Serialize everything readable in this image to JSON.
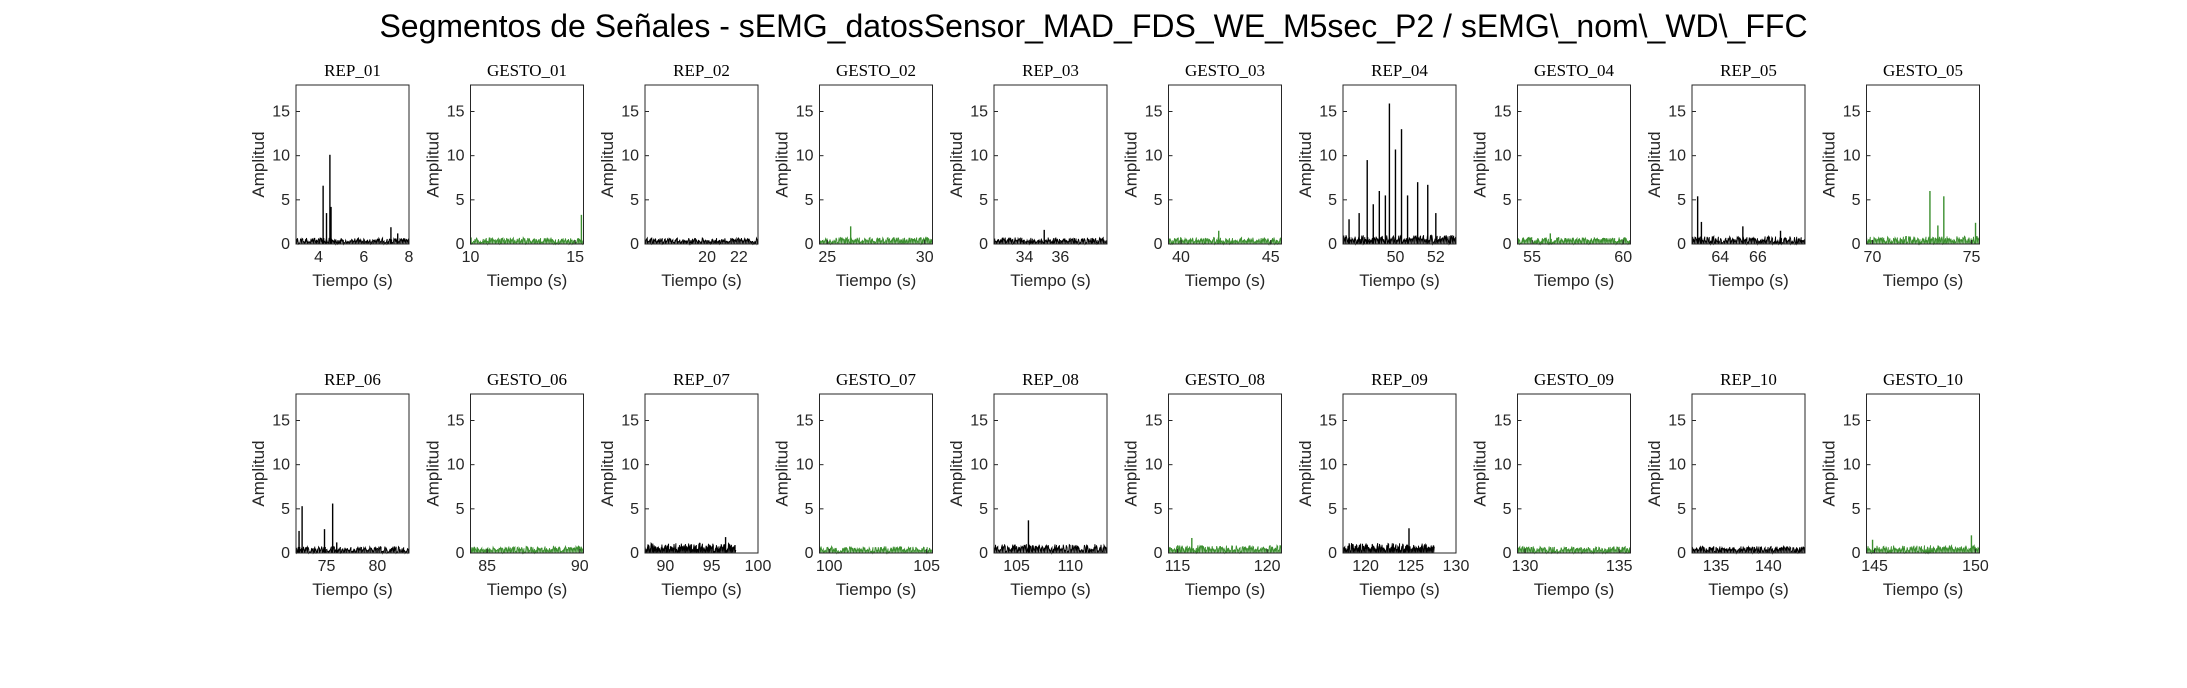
{
  "title": "Segmentos de Señales - sEMG_datosSensor_MAD_FDS_WE_M5sec_P2 / sEMG\\_nom\\_WD\\_FFC",
  "colors": {
    "rep": "#000000",
    "gesto": "#3b8f2f",
    "axis": "#262626"
  },
  "chart_data": [
    {
      "type": "line",
      "title": "REP_01",
      "xlabel": "Tiempo (s)",
      "ylabel": "Amplitud",
      "xlim": [
        3,
        8
      ],
      "ylim": [
        0,
        18
      ],
      "xticks": [
        4,
        6,
        8
      ],
      "yticks": [
        0,
        5,
        10,
        15
      ],
      "color": "black",
      "baseline": 0.55,
      "spikes": [
        [
          4.2,
          6.6
        ],
        [
          4.35,
          3.5
        ],
        [
          4.5,
          10.1
        ],
        [
          4.55,
          4.2
        ],
        [
          7.2,
          1.9
        ],
        [
          7.5,
          1.2
        ]
      ]
    },
    {
      "type": "line",
      "title": "GESTO_01",
      "xlabel": "Tiempo (s)",
      "ylabel": "Amplitud",
      "xlim": [
        10,
        15.4
      ],
      "ylim": [
        0,
        18
      ],
      "xticks": [
        10,
        15
      ],
      "yticks": [
        0,
        5,
        10,
        15
      ],
      "color": "green",
      "baseline": 0.6,
      "spikes": [
        [
          15.3,
          3.3
        ]
      ]
    },
    {
      "type": "line",
      "title": "REP_02",
      "xlabel": "Tiempo (s)",
      "ylabel": "Amplitud",
      "xlim": [
        16.1,
        23.2
      ],
      "ylim": [
        0,
        18
      ],
      "xticks": [
        20,
        22
      ],
      "yticks": [
        0,
        5,
        10,
        15
      ],
      "color": "black",
      "baseline": 0.55,
      "spikes": []
    },
    {
      "type": "line",
      "title": "GESTO_02",
      "xlabel": "Tiempo (s)",
      "ylabel": "Amplitud",
      "xlim": [
        24.6,
        30.4
      ],
      "ylim": [
        0,
        18
      ],
      "xticks": [
        25,
        30
      ],
      "yticks": [
        0,
        5,
        10,
        15
      ],
      "color": "green",
      "baseline": 0.6,
      "spikes": [
        [
          26.2,
          2.0
        ]
      ]
    },
    {
      "type": "line",
      "title": "REP_03",
      "xlabel": "Tiempo (s)",
      "ylabel": "Amplitud",
      "xlim": [
        32.3,
        38.6
      ],
      "ylim": [
        0,
        18
      ],
      "xticks": [
        34,
        36
      ],
      "yticks": [
        0,
        5,
        10,
        15
      ],
      "color": "black",
      "baseline": 0.6,
      "spikes": [
        [
          35.1,
          1.6
        ]
      ]
    },
    {
      "type": "line",
      "title": "GESTO_03",
      "xlabel": "Tiempo (s)",
      "ylabel": "Amplitud",
      "xlim": [
        39.3,
        45.6
      ],
      "ylim": [
        0,
        18
      ],
      "xticks": [
        40,
        45
      ],
      "yticks": [
        0,
        5,
        10,
        15
      ],
      "color": "green",
      "baseline": 0.6,
      "spikes": [
        [
          42.1,
          1.5
        ]
      ]
    },
    {
      "type": "line",
      "title": "REP_04",
      "xlabel": "Tiempo (s)",
      "ylabel": "Amplitud",
      "xlim": [
        47.4,
        53
      ],
      "ylim": [
        0,
        18
      ],
      "xticks": [
        50,
        52
      ],
      "yticks": [
        0,
        5,
        10,
        15
      ],
      "color": "black",
      "baseline": 0.8,
      "spikes": [
        [
          47.7,
          2.8
        ],
        [
          48.2,
          3.5
        ],
        [
          48.6,
          9.5
        ],
        [
          48.9,
          4.5
        ],
        [
          49.2,
          6.0
        ],
        [
          49.5,
          5.5
        ],
        [
          49.7,
          15.9
        ],
        [
          50,
          10.7
        ],
        [
          50.3,
          13.0
        ],
        [
          50.6,
          5.5
        ],
        [
          51.1,
          7.0
        ],
        [
          51.6,
          6.7
        ],
        [
          52,
          3.5
        ]
      ]
    },
    {
      "type": "line",
      "title": "GESTO_04",
      "xlabel": "Tiempo (s)",
      "ylabel": "Amplitud",
      "xlim": [
        54.2,
        60.4
      ],
      "ylim": [
        0,
        18
      ],
      "xticks": [
        55,
        60
      ],
      "yticks": [
        0,
        5,
        10,
        15
      ],
      "color": "green",
      "baseline": 0.6,
      "spikes": [
        [
          56,
          1.2
        ]
      ]
    },
    {
      "type": "line",
      "title": "REP_05",
      "xlabel": "Tiempo (s)",
      "ylabel": "Amplitud",
      "xlim": [
        62.5,
        68.5
      ],
      "ylim": [
        0,
        18
      ],
      "xticks": [
        64,
        66
      ],
      "yticks": [
        0,
        5,
        10,
        15
      ],
      "color": "black",
      "baseline": 0.7,
      "spikes": [
        [
          62.8,
          5.4
        ],
        [
          63.0,
          2.5
        ],
        [
          65.2,
          2.0
        ],
        [
          67.2,
          1.5
        ]
      ]
    },
    {
      "type": "line",
      "title": "GESTO_05",
      "xlabel": "Tiempo (s)",
      "ylabel": "Amplitud",
      "xlim": [
        69.7,
        75.4
      ],
      "ylim": [
        0,
        18
      ],
      "xticks": [
        70,
        75
      ],
      "yticks": [
        0,
        5,
        10,
        15
      ],
      "color": "green",
      "baseline": 0.7,
      "spikes": [
        [
          72.9,
          6.0
        ],
        [
          73.3,
          2.1
        ],
        [
          73.6,
          5.4
        ],
        [
          75.2,
          2.4
        ]
      ]
    },
    {
      "type": "line",
      "title": "REP_06",
      "xlabel": "Tiempo (s)",
      "ylabel": "Amplitud",
      "xlim": [
        72,
        83.1
      ],
      "ylim": [
        0,
        18
      ],
      "xticks": [
        75,
        80
      ],
      "yticks": [
        0,
        5,
        10,
        15
      ],
      "color": "black",
      "baseline": 0.6,
      "spikes": [
        [
          72.3,
          2.5
        ],
        [
          72.6,
          5.3
        ],
        [
          74.8,
          2.7
        ],
        [
          75.6,
          5.6
        ],
        [
          76,
          1.2
        ]
      ]
    },
    {
      "type": "line",
      "title": "GESTO_06",
      "xlabel": "Tiempo (s)",
      "ylabel": "Amplitud",
      "xlim": [
        84.1,
        90.2
      ],
      "ylim": [
        0,
        18
      ],
      "xticks": [
        85,
        90
      ],
      "yticks": [
        0,
        5,
        10,
        15
      ],
      "color": "green",
      "baseline": 0.6,
      "spikes": []
    },
    {
      "type": "line",
      "title": "REP_07",
      "xlabel": "Tiempo (s)",
      "ylabel": "Amplitud",
      "xlim": [
        87.8,
        100
      ],
      "ylim": [
        0,
        18
      ],
      "xticks": [
        90,
        95,
        100
      ],
      "yticks": [
        0,
        5,
        10,
        15
      ],
      "color": "black",
      "baseline": 0.9,
      "end": 97.6,
      "spikes": [
        [
          96.5,
          1.8
        ]
      ]
    },
    {
      "type": "line",
      "title": "GESTO_07",
      "xlabel": "Tiempo (s)",
      "ylabel": "Amplitud",
      "xlim": [
        99.5,
        105.3
      ],
      "ylim": [
        0,
        18
      ],
      "xticks": [
        100,
        105
      ],
      "yticks": [
        0,
        5,
        10,
        15
      ],
      "color": "green",
      "baseline": 0.6,
      "spikes": []
    },
    {
      "type": "line",
      "title": "REP_08",
      "xlabel": "Tiempo (s)",
      "ylabel": "Amplitud",
      "xlim": [
        102.9,
        113.4
      ],
      "ylim": [
        0,
        18
      ],
      "xticks": [
        105,
        110
      ],
      "yticks": [
        0,
        5,
        10,
        15
      ],
      "color": "black",
      "baseline": 0.8,
      "spikes": [
        [
          106.1,
          3.7
        ]
      ]
    },
    {
      "type": "line",
      "title": "GESTO_08",
      "xlabel": "Tiempo (s)",
      "ylabel": "Amplitud",
      "xlim": [
        114.5,
        120.8
      ],
      "ylim": [
        0,
        18
      ],
      "xticks": [
        115,
        120
      ],
      "yticks": [
        0,
        5,
        10,
        15
      ],
      "color": "green",
      "baseline": 0.7,
      "spikes": [
        [
          115.8,
          1.7
        ]
      ]
    },
    {
      "type": "line",
      "title": "REP_09",
      "xlabel": "Tiempo (s)",
      "ylabel": "Amplitud",
      "xlim": [
        117.5,
        130
      ],
      "ylim": [
        0,
        18
      ],
      "xticks": [
        120,
        125,
        130
      ],
      "yticks": [
        0,
        5,
        10,
        15
      ],
      "color": "black",
      "baseline": 0.9,
      "end": 127.6,
      "spikes": [
        [
          124.8,
          2.8
        ]
      ]
    },
    {
      "type": "line",
      "title": "GESTO_09",
      "xlabel": "Tiempo (s)",
      "ylabel": "Amplitud",
      "xlim": [
        129.6,
        135.6
      ],
      "ylim": [
        0,
        18
      ],
      "xticks": [
        130,
        135
      ],
      "yticks": [
        0,
        5,
        10,
        15
      ],
      "color": "green",
      "baseline": 0.6,
      "spikes": []
    },
    {
      "type": "line",
      "title": "REP_10",
      "xlabel": "Tiempo (s)",
      "ylabel": "Amplitud",
      "xlim": [
        132.7,
        143.5
      ],
      "ylim": [
        0,
        18
      ],
      "xticks": [
        135,
        140
      ],
      "yticks": [
        0,
        5,
        10,
        15
      ],
      "color": "black",
      "baseline": 0.6,
      "spikes": []
    },
    {
      "type": "line",
      "title": "GESTO_10",
      "xlabel": "Tiempo (s)",
      "ylabel": "Amplitud",
      "xlim": [
        144.6,
        150.2
      ],
      "ylim": [
        0,
        18
      ],
      "xticks": [
        145,
        150
      ],
      "yticks": [
        0,
        5,
        10,
        15
      ],
      "color": "green",
      "baseline": 0.7,
      "spikes": [
        [
          144.9,
          1.5
        ],
        [
          149.8,
          2.0
        ]
      ]
    }
  ]
}
